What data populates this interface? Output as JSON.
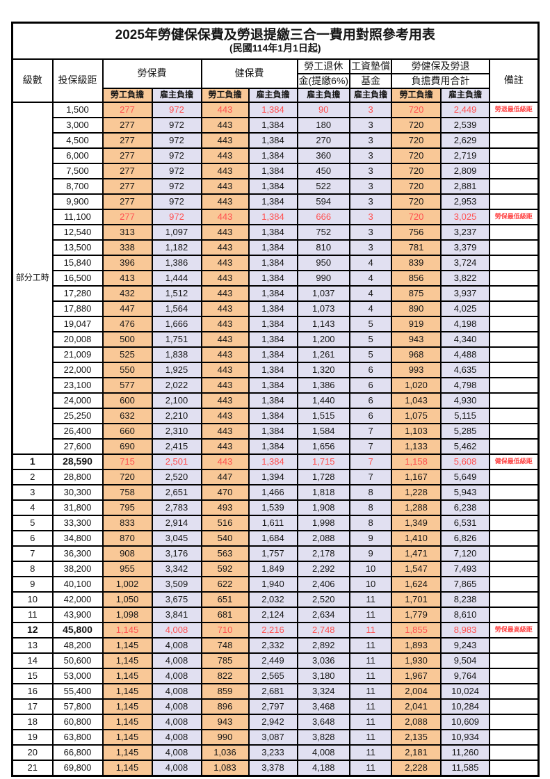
{
  "title": "2025年勞健保保費及勞退提繳三合一費用對照參考用表",
  "subtitle": "(民國114年1月1日起)",
  "colors": {
    "employee_fill": "#F9C897",
    "employer_fill": "#E1E0F1",
    "highlight_text": "#FF5050",
    "remark_text": "#FF4747",
    "border": "#000000"
  },
  "header": {
    "level": "級數",
    "bracket": "投保級距",
    "labor_fee": "勞保費",
    "health_fee": "健保費",
    "pension_line1": "勞工退休",
    "pension_line2": "金(提繳6%)",
    "wage_fund_line1": "工資墊償",
    "wage_fund_line2": "基金",
    "total_line1": "勞健保及勞退",
    "total_line2": "負擔費用合計",
    "remark": "備註",
    "employee": "勞工負擔",
    "employer": "雇主負擔"
  },
  "group_label": "部分工時",
  "rows": [
    {
      "level": "",
      "bracket": "1,500",
      "labor_emp": "277",
      "labor_er": "972",
      "health_emp": "443",
      "health_er": "1,384",
      "pension": "90",
      "fund": "3",
      "total_emp": "720",
      "total_er": "2,449",
      "remark": "勞退最低級距",
      "hl": true,
      "bold": false
    },
    {
      "level": "",
      "bracket": "3,000",
      "labor_emp": "277",
      "labor_er": "972",
      "health_emp": "443",
      "health_er": "1,384",
      "pension": "180",
      "fund": "3",
      "total_emp": "720",
      "total_er": "2,539",
      "remark": "",
      "hl": false,
      "bold": false
    },
    {
      "level": "",
      "bracket": "4,500",
      "labor_emp": "277",
      "labor_er": "972",
      "health_emp": "443",
      "health_er": "1,384",
      "pension": "270",
      "fund": "3",
      "total_emp": "720",
      "total_er": "2,629",
      "remark": "",
      "hl": false,
      "bold": false
    },
    {
      "level": "",
      "bracket": "6,000",
      "labor_emp": "277",
      "labor_er": "972",
      "health_emp": "443",
      "health_er": "1,384",
      "pension": "360",
      "fund": "3",
      "total_emp": "720",
      "total_er": "2,719",
      "remark": "",
      "hl": false,
      "bold": false
    },
    {
      "level": "",
      "bracket": "7,500",
      "labor_emp": "277",
      "labor_er": "972",
      "health_emp": "443",
      "health_er": "1,384",
      "pension": "450",
      "fund": "3",
      "total_emp": "720",
      "total_er": "2,809",
      "remark": "",
      "hl": false,
      "bold": false
    },
    {
      "level": "",
      "bracket": "8,700",
      "labor_emp": "277",
      "labor_er": "972",
      "health_emp": "443",
      "health_er": "1,384",
      "pension": "522",
      "fund": "3",
      "total_emp": "720",
      "total_er": "2,881",
      "remark": "",
      "hl": false,
      "bold": false
    },
    {
      "level": "",
      "bracket": "9,900",
      "labor_emp": "277",
      "labor_er": "972",
      "health_emp": "443",
      "health_er": "1,384",
      "pension": "594",
      "fund": "3",
      "total_emp": "720",
      "total_er": "2,953",
      "remark": "",
      "hl": false,
      "bold": false
    },
    {
      "level": "",
      "bracket": "11,100",
      "labor_emp": "277",
      "labor_er": "972",
      "health_emp": "443",
      "health_er": "1,384",
      "pension": "666",
      "fund": "3",
      "total_emp": "720",
      "total_er": "3,025",
      "remark": "勞保最低級距",
      "hl": true,
      "bold": false
    },
    {
      "level": "",
      "bracket": "12,540",
      "labor_emp": "313",
      "labor_er": "1,097",
      "health_emp": "443",
      "health_er": "1,384",
      "pension": "752",
      "fund": "3",
      "total_emp": "756",
      "total_er": "3,237",
      "remark": "",
      "hl": false,
      "bold": false
    },
    {
      "level": "",
      "bracket": "13,500",
      "labor_emp": "338",
      "labor_er": "1,182",
      "health_emp": "443",
      "health_er": "1,384",
      "pension": "810",
      "fund": "3",
      "total_emp": "781",
      "total_er": "3,379",
      "remark": "",
      "hl": false,
      "bold": false
    },
    {
      "level": "",
      "bracket": "15,840",
      "labor_emp": "396",
      "labor_er": "1,386",
      "health_emp": "443",
      "health_er": "1,384",
      "pension": "950",
      "fund": "4",
      "total_emp": "839",
      "total_er": "3,724",
      "remark": "",
      "hl": false,
      "bold": false
    },
    {
      "level": "",
      "bracket": "16,500",
      "labor_emp": "413",
      "labor_er": "1,444",
      "health_emp": "443",
      "health_er": "1,384",
      "pension": "990",
      "fund": "4",
      "total_emp": "856",
      "total_er": "3,822",
      "remark": "",
      "hl": false,
      "bold": false
    },
    {
      "level": "",
      "bracket": "17,280",
      "labor_emp": "432",
      "labor_er": "1,512",
      "health_emp": "443",
      "health_er": "1,384",
      "pension": "1,037",
      "fund": "4",
      "total_emp": "875",
      "total_er": "3,937",
      "remark": "",
      "hl": false,
      "bold": false
    },
    {
      "level": "",
      "bracket": "17,880",
      "labor_emp": "447",
      "labor_er": "1,564",
      "health_emp": "443",
      "health_er": "1,384",
      "pension": "1,073",
      "fund": "4",
      "total_emp": "890",
      "total_er": "4,025",
      "remark": "",
      "hl": false,
      "bold": false
    },
    {
      "level": "",
      "bracket": "19,047",
      "labor_emp": "476",
      "labor_er": "1,666",
      "health_emp": "443",
      "health_er": "1,384",
      "pension": "1,143",
      "fund": "5",
      "total_emp": "919",
      "total_er": "4,198",
      "remark": "",
      "hl": false,
      "bold": false
    },
    {
      "level": "",
      "bracket": "20,008",
      "labor_emp": "500",
      "labor_er": "1,751",
      "health_emp": "443",
      "health_er": "1,384",
      "pension": "1,200",
      "fund": "5",
      "total_emp": "943",
      "total_er": "4,340",
      "remark": "",
      "hl": false,
      "bold": false
    },
    {
      "level": "",
      "bracket": "21,009",
      "labor_emp": "525",
      "labor_er": "1,838",
      "health_emp": "443",
      "health_er": "1,384",
      "pension": "1,261",
      "fund": "5",
      "total_emp": "968",
      "total_er": "4,488",
      "remark": "",
      "hl": false,
      "bold": false
    },
    {
      "level": "",
      "bracket": "22,000",
      "labor_emp": "550",
      "labor_er": "1,925",
      "health_emp": "443",
      "health_er": "1,384",
      "pension": "1,320",
      "fund": "6",
      "total_emp": "993",
      "total_er": "4,635",
      "remark": "",
      "hl": false,
      "bold": false
    },
    {
      "level": "",
      "bracket": "23,100",
      "labor_emp": "577",
      "labor_er": "2,022",
      "health_emp": "443",
      "health_er": "1,384",
      "pension": "1,386",
      "fund": "6",
      "total_emp": "1,020",
      "total_er": "4,798",
      "remark": "",
      "hl": false,
      "bold": false
    },
    {
      "level": "",
      "bracket": "24,000",
      "labor_emp": "600",
      "labor_er": "2,100",
      "health_emp": "443",
      "health_er": "1,384",
      "pension": "1,440",
      "fund": "6",
      "total_emp": "1,043",
      "total_er": "4,930",
      "remark": "",
      "hl": false,
      "bold": false
    },
    {
      "level": "",
      "bracket": "25,250",
      "labor_emp": "632",
      "labor_er": "2,210",
      "health_emp": "443",
      "health_er": "1,384",
      "pension": "1,515",
      "fund": "6",
      "total_emp": "1,075",
      "total_er": "5,115",
      "remark": "",
      "hl": false,
      "bold": false
    },
    {
      "level": "",
      "bracket": "26,400",
      "labor_emp": "660",
      "labor_er": "2,310",
      "health_emp": "443",
      "health_er": "1,384",
      "pension": "1,584",
      "fund": "7",
      "total_emp": "1,103",
      "total_er": "5,285",
      "remark": "",
      "hl": false,
      "bold": false
    },
    {
      "level": "",
      "bracket": "27,600",
      "labor_emp": "690",
      "labor_er": "2,415",
      "health_emp": "443",
      "health_er": "1,384",
      "pension": "1,656",
      "fund": "7",
      "total_emp": "1,133",
      "total_er": "5,462",
      "remark": "",
      "hl": false,
      "bold": false
    },
    {
      "level": "1",
      "bracket": "28,590",
      "labor_emp": "715",
      "labor_er": "2,501",
      "health_emp": "443",
      "health_er": "1,384",
      "pension": "1,715",
      "fund": "7",
      "total_emp": "1,158",
      "total_er": "5,608",
      "remark": "健保最低級距",
      "hl": true,
      "bold": true
    },
    {
      "level": "2",
      "bracket": "28,800",
      "labor_emp": "720",
      "labor_er": "2,520",
      "health_emp": "447",
      "health_er": "1,394",
      "pension": "1,728",
      "fund": "7",
      "total_emp": "1,167",
      "total_er": "5,649",
      "remark": "",
      "hl": false,
      "bold": false
    },
    {
      "level": "3",
      "bracket": "30,300",
      "labor_emp": "758",
      "labor_er": "2,651",
      "health_emp": "470",
      "health_er": "1,466",
      "pension": "1,818",
      "fund": "8",
      "total_emp": "1,228",
      "total_er": "5,943",
      "remark": "",
      "hl": false,
      "bold": false
    },
    {
      "level": "4",
      "bracket": "31,800",
      "labor_emp": "795",
      "labor_er": "2,783",
      "health_emp": "493",
      "health_er": "1,539",
      "pension": "1,908",
      "fund": "8",
      "total_emp": "1,288",
      "total_er": "6,238",
      "remark": "",
      "hl": false,
      "bold": false
    },
    {
      "level": "5",
      "bracket": "33,300",
      "labor_emp": "833",
      "labor_er": "2,914",
      "health_emp": "516",
      "health_er": "1,611",
      "pension": "1,998",
      "fund": "8",
      "total_emp": "1,349",
      "total_er": "6,531",
      "remark": "",
      "hl": false,
      "bold": false
    },
    {
      "level": "6",
      "bracket": "34,800",
      "labor_emp": "870",
      "labor_er": "3,045",
      "health_emp": "540",
      "health_er": "1,684",
      "pension": "2,088",
      "fund": "9",
      "total_emp": "1,410",
      "total_er": "6,826",
      "remark": "",
      "hl": false,
      "bold": false
    },
    {
      "level": "7",
      "bracket": "36,300",
      "labor_emp": "908",
      "labor_er": "3,176",
      "health_emp": "563",
      "health_er": "1,757",
      "pension": "2,178",
      "fund": "9",
      "total_emp": "1,471",
      "total_er": "7,120",
      "remark": "",
      "hl": false,
      "bold": false
    },
    {
      "level": "8",
      "bracket": "38,200",
      "labor_emp": "955",
      "labor_er": "3,342",
      "health_emp": "592",
      "health_er": "1,849",
      "pension": "2,292",
      "fund": "10",
      "total_emp": "1,547",
      "total_er": "7,493",
      "remark": "",
      "hl": false,
      "bold": false
    },
    {
      "level": "9",
      "bracket": "40,100",
      "labor_emp": "1,002",
      "labor_er": "3,509",
      "health_emp": "622",
      "health_er": "1,940",
      "pension": "2,406",
      "fund": "10",
      "total_emp": "1,624",
      "total_er": "7,865",
      "remark": "",
      "hl": false,
      "bold": false
    },
    {
      "level": "10",
      "bracket": "42,000",
      "labor_emp": "1,050",
      "labor_er": "3,675",
      "health_emp": "651",
      "health_er": "2,032",
      "pension": "2,520",
      "fund": "11",
      "total_emp": "1,701",
      "total_er": "8,238",
      "remark": "",
      "hl": false,
      "bold": false
    },
    {
      "level": "11",
      "bracket": "43,900",
      "labor_emp": "1,098",
      "labor_er": "3,841",
      "health_emp": "681",
      "health_er": "2,124",
      "pension": "2,634",
      "fund": "11",
      "total_emp": "1,779",
      "total_er": "8,610",
      "remark": "",
      "hl": false,
      "bold": false
    },
    {
      "level": "12",
      "bracket": "45,800",
      "labor_emp": "1,145",
      "labor_er": "4,008",
      "health_emp": "710",
      "health_er": "2,216",
      "pension": "2,748",
      "fund": "11",
      "total_emp": "1,855",
      "total_er": "8,983",
      "remark": "勞保最高級距",
      "hl": true,
      "bold": true
    },
    {
      "level": "13",
      "bracket": "48,200",
      "labor_emp": "1,145",
      "labor_er": "4,008",
      "health_emp": "748",
      "health_er": "2,332",
      "pension": "2,892",
      "fund": "11",
      "total_emp": "1,893",
      "total_er": "9,243",
      "remark": "",
      "hl": false,
      "bold": false
    },
    {
      "level": "14",
      "bracket": "50,600",
      "labor_emp": "1,145",
      "labor_er": "4,008",
      "health_emp": "785",
      "health_er": "2,449",
      "pension": "3,036",
      "fund": "11",
      "total_emp": "1,930",
      "total_er": "9,504",
      "remark": "",
      "hl": false,
      "bold": false
    },
    {
      "level": "15",
      "bracket": "53,000",
      "labor_emp": "1,145",
      "labor_er": "4,008",
      "health_emp": "822",
      "health_er": "2,565",
      "pension": "3,180",
      "fund": "11",
      "total_emp": "1,967",
      "total_er": "9,764",
      "remark": "",
      "hl": false,
      "bold": false
    },
    {
      "level": "16",
      "bracket": "55,400",
      "labor_emp": "1,145",
      "labor_er": "4,008",
      "health_emp": "859",
      "health_er": "2,681",
      "pension": "3,324",
      "fund": "11",
      "total_emp": "2,004",
      "total_er": "10,024",
      "remark": "",
      "hl": false,
      "bold": false
    },
    {
      "level": "17",
      "bracket": "57,800",
      "labor_emp": "1,145",
      "labor_er": "4,008",
      "health_emp": "896",
      "health_er": "2,797",
      "pension": "3,468",
      "fund": "11",
      "total_emp": "2,041",
      "total_er": "10,284",
      "remark": "",
      "hl": false,
      "bold": false
    },
    {
      "level": "18",
      "bracket": "60,800",
      "labor_emp": "1,145",
      "labor_er": "4,008",
      "health_emp": "943",
      "health_er": "2,942",
      "pension": "3,648",
      "fund": "11",
      "total_emp": "2,088",
      "total_er": "10,609",
      "remark": "",
      "hl": false,
      "bold": false
    },
    {
      "level": "19",
      "bracket": "63,800",
      "labor_emp": "1,145",
      "labor_er": "4,008",
      "health_emp": "990",
      "health_er": "3,087",
      "pension": "3,828",
      "fund": "11",
      "total_emp": "2,135",
      "total_er": "10,934",
      "remark": "",
      "hl": false,
      "bold": false
    },
    {
      "level": "20",
      "bracket": "66,800",
      "labor_emp": "1,145",
      "labor_er": "4,008",
      "health_emp": "1,036",
      "health_er": "3,233",
      "pension": "4,008",
      "fund": "11",
      "total_emp": "2,181",
      "total_er": "11,260",
      "remark": "",
      "hl": false,
      "bold": false
    },
    {
      "level": "21",
      "bracket": "69,800",
      "labor_emp": "1,145",
      "labor_er": "4,008",
      "health_emp": "1,083",
      "health_er": "3,378",
      "pension": "4,188",
      "fund": "11",
      "total_emp": "2,228",
      "total_er": "11,585",
      "remark": "",
      "hl": false,
      "bold": false
    }
  ]
}
